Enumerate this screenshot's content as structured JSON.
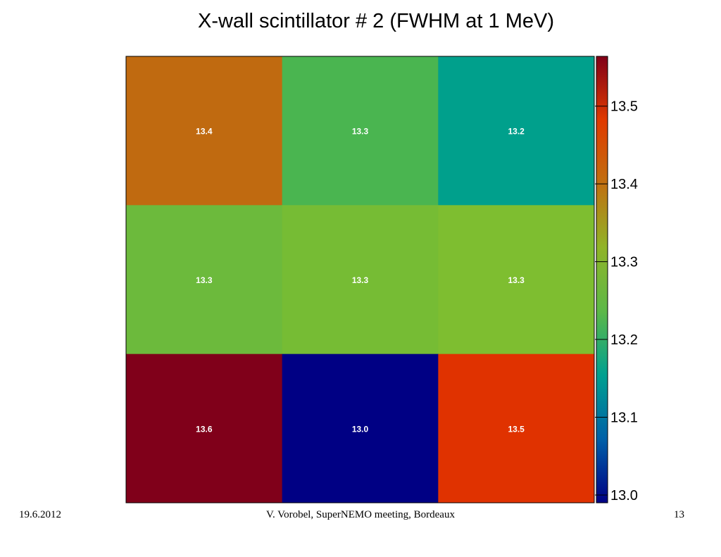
{
  "slide": {
    "title": "X-wall scintillator # 2 (FWHM at 1 MeV)",
    "footer_date": "19.6.2012",
    "footer_center": "V. Vorobel, SuperNEMO meeting, Bordeaux",
    "footer_page": "13"
  },
  "chart_data": {
    "type": "heatmap",
    "title": "X-wall scintillator # 2 (FWHM at 1 MeV)",
    "rows": [
      {
        "values": [
          13.4,
          13.3,
          13.2
        ],
        "labels": [
          "13.4",
          "13.3",
          "13.2"
        ]
      },
      {
        "values": [
          13.3,
          13.3,
          13.3
        ],
        "labels": [
          "13.3",
          "13.3",
          "13.3"
        ]
      },
      {
        "values": [
          13.6,
          13.0,
          13.5
        ],
        "labels": [
          "13.6",
          "13.0",
          "13.5"
        ]
      }
    ],
    "cell_colors": [
      [
        "#c06a10",
        "#4ab550",
        "#00a08c"
      ],
      [
        "#6cba3c",
        "#76bc34",
        "#7ebe30"
      ],
      [
        "#80001a",
        "#000084",
        "#e03200"
      ]
    ],
    "colorbar": {
      "min": 12.99,
      "max": 13.564,
      "ticks": [
        13.0,
        13.1,
        13.2,
        13.3,
        13.4,
        13.5
      ],
      "tick_labels": [
        "13.0",
        "13.1",
        "13.2",
        "13.3",
        "13.4",
        "13.5"
      ],
      "gradient_stops": [
        "#000084",
        "#0060a8",
        "#00a090",
        "#5cb848",
        "#90b428",
        "#c07010",
        "#e03a00",
        "#800018"
      ]
    }
  }
}
